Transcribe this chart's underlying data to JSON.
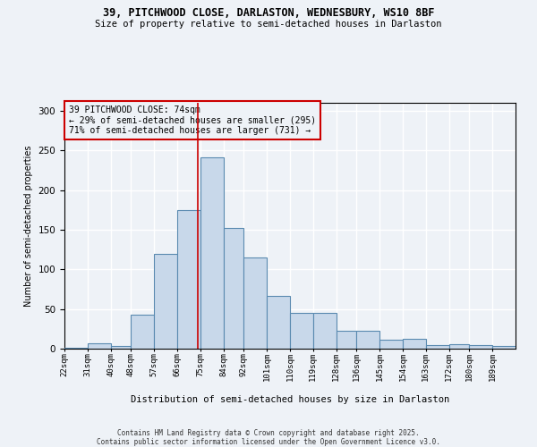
{
  "title_line1": "39, PITCHWOOD CLOSE, DARLASTON, WEDNESBURY, WS10 8BF",
  "title_line2": "Size of property relative to semi-detached houses in Darlaston",
  "xlabel": "Distribution of semi-detached houses by size in Darlaston",
  "ylabel": "Number of semi-detached properties",
  "footer_line1": "Contains HM Land Registry data © Crown copyright and database right 2025.",
  "footer_line2": "Contains public sector information licensed under the Open Government Licence v3.0.",
  "annotation_line1": "39 PITCHWOOD CLOSE: 74sqm",
  "annotation_line2": "← 29% of semi-detached houses are smaller (295)",
  "annotation_line3": "71% of semi-detached houses are larger (731) →",
  "property_size": 74,
  "bin_edges": [
    22,
    31,
    40,
    48,
    57,
    66,
    75,
    84,
    92,
    101,
    110,
    119,
    128,
    136,
    145,
    154,
    163,
    172,
    180,
    189,
    198
  ],
  "bar_heights": [
    1,
    7,
    3,
    43,
    120,
    175,
    241,
    152,
    115,
    66,
    45,
    45,
    23,
    23,
    11,
    12,
    4,
    6,
    5,
    3
  ],
  "bar_color": "#c8d8ea",
  "bar_edge_color": "#5a8ab0",
  "vline_color": "#cc0000",
  "background_color": "#eef2f7",
  "grid_color": "#ffffff",
  "ylim": [
    0,
    310
  ],
  "yticks": [
    0,
    50,
    100,
    150,
    200,
    250,
    300
  ]
}
